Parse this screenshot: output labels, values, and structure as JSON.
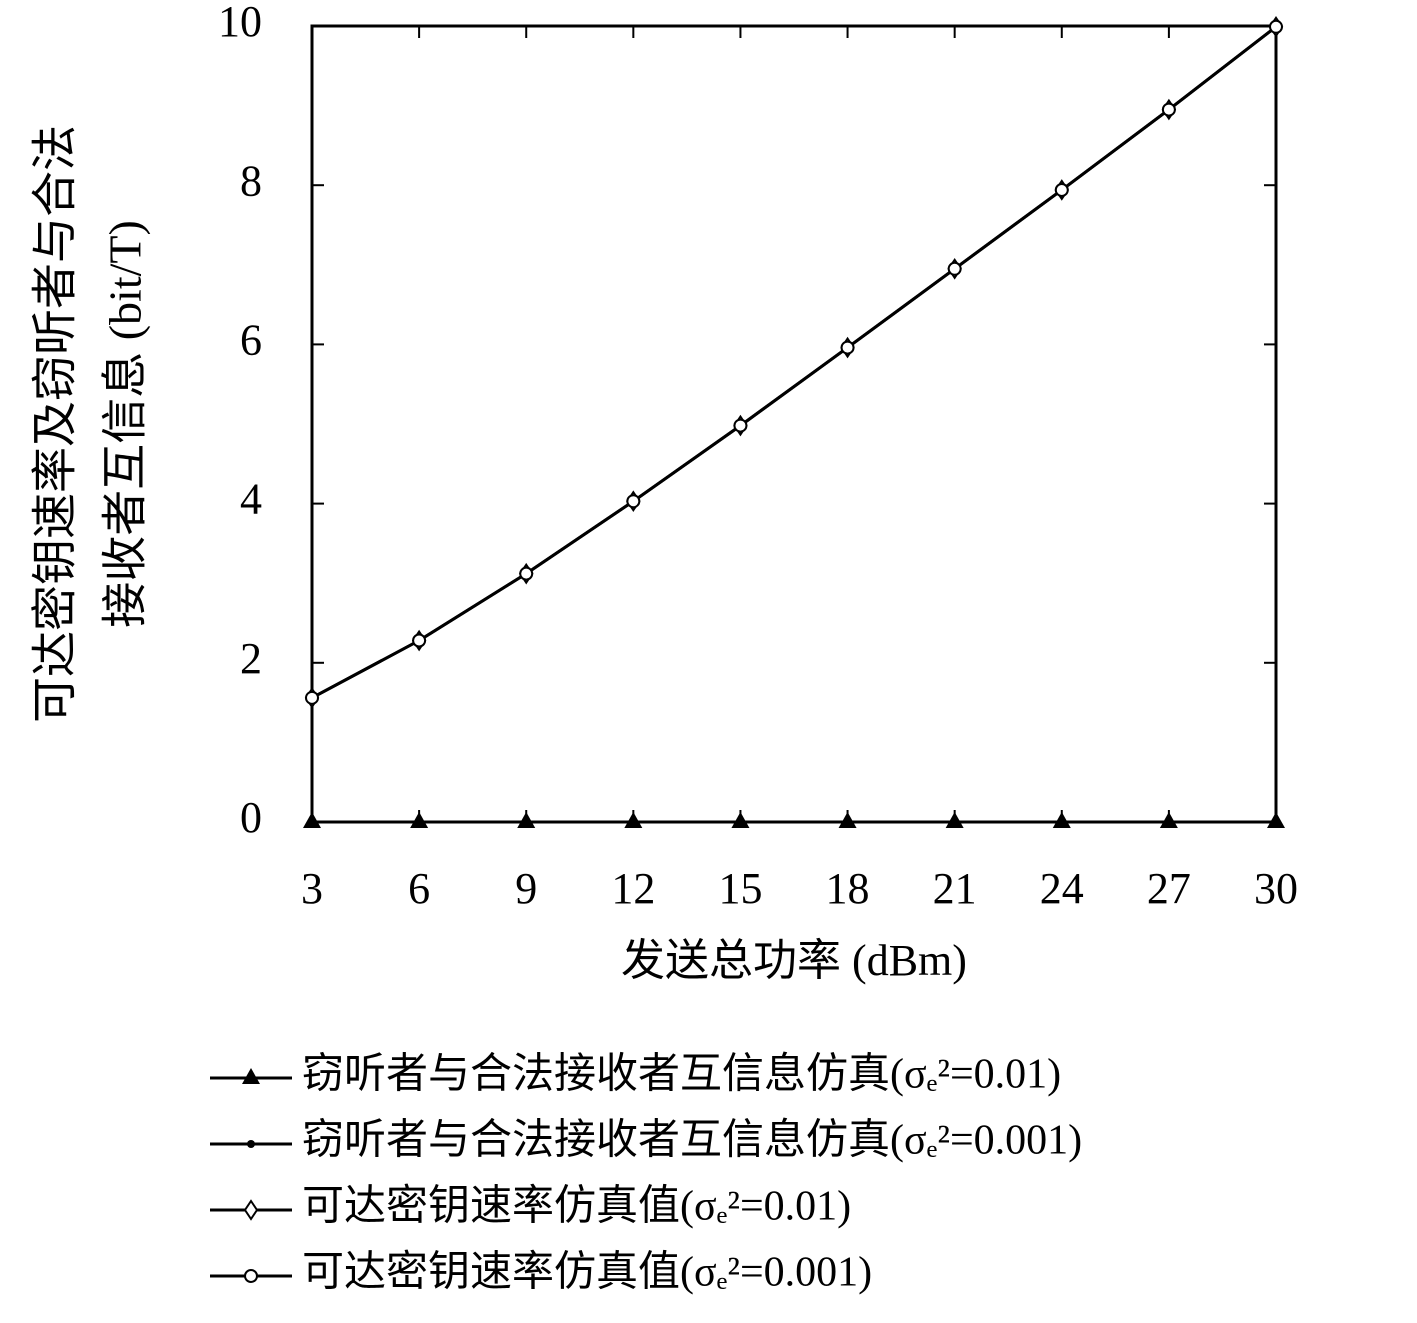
{
  "chart_data": {
    "type": "line",
    "y_label_lines": [
      "可达密钥速率及窃听者与合法",
      "接收者互信息 (bit/T)"
    ],
    "x_label": "发送总功率 (dBm)",
    "x": [
      3,
      6,
      9,
      12,
      15,
      18,
      21,
      24,
      27,
      30
    ],
    "xlim": [
      3,
      30
    ],
    "xticks": [
      3,
      6,
      9,
      12,
      15,
      18,
      21,
      24,
      27,
      30
    ],
    "ylim": [
      0,
      10
    ],
    "yticks": [
      0,
      2,
      4,
      6,
      8,
      10
    ],
    "grid": false,
    "legend": "bottom",
    "series": [
      {
        "name": "窃听者与合法接收者互信息仿真(σₑ²=0.01)",
        "color": "#000000",
        "marker": "triangle",
        "values": [
          0,
          0,
          0,
          0,
          0,
          0,
          0,
          0,
          0,
          0
        ]
      },
      {
        "name": "窃听者与合法接收者互信息仿真(σₑ²=0.001)",
        "color": "#000000",
        "marker": "dot",
        "values": [
          0,
          0,
          0,
          0,
          0,
          0,
          0,
          0,
          0,
          0
        ]
      },
      {
        "name": "可达密钥速率仿真值(σₑ²=0.01)",
        "color": "#000000",
        "marker": "diamond",
        "values": [
          1.56,
          2.28,
          3.12,
          4.03,
          4.98,
          5.96,
          6.95,
          7.94,
          8.95,
          9.99
        ]
      },
      {
        "name": "可达密钥速率仿真值(σₑ²=0.001)",
        "color": "#000000",
        "marker": "circle",
        "values": [
          1.56,
          2.28,
          3.12,
          4.03,
          4.98,
          5.96,
          6.95,
          7.94,
          8.95,
          9.99
        ]
      }
    ]
  }
}
